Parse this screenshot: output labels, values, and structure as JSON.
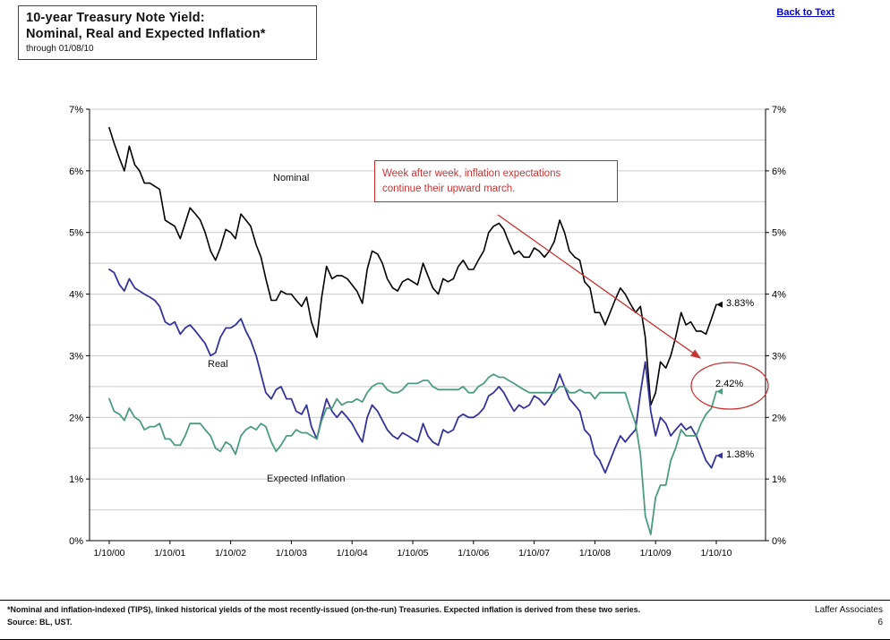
{
  "header": {
    "title_line1": "10-year Treasury Note Yield:",
    "title_line2": "Nominal, Real and Expected Inflation*",
    "subtitle": "through 01/08/10",
    "back_link": "Back to Text"
  },
  "annotation": {
    "line1": "Week after week, inflation expectations",
    "line2": "continue their upward march.",
    "color": "#c63333"
  },
  "footer": {
    "note": "*Nominal and inflation-indexed (TIPS), linked historical yields of the most recently-issued (on-the-run) Treasuries. Expected inflation is derived from these two series.",
    "source": "Source: BL, UST.",
    "company": "Laffer Associates",
    "page_number": "6"
  },
  "chart_data": {
    "type": "line",
    "title": "10-year Treasury Note Yield: Nominal, Real and Expected Inflation",
    "xlabel": "",
    "ylabel": "",
    "xlim": [
      2000.03,
      2010.03
    ],
    "ylim": [
      0,
      7
    ],
    "grid": {
      "horizontal": true,
      "step_percent": 0.5
    },
    "legend_position": "inline-labels",
    "x_tick_labels": [
      "1/10/00",
      "1/10/01",
      "1/10/02",
      "1/10/03",
      "1/10/04",
      "1/10/05",
      "1/10/06",
      "1/10/07",
      "1/10/08",
      "1/10/09",
      "1/10/10"
    ],
    "y_tick_labels": [
      "0%",
      "1%",
      "2%",
      "3%",
      "4%",
      "5%",
      "6%",
      "7%"
    ],
    "x": [
      2000.03,
      2000.11,
      2000.2,
      2000.28,
      2000.36,
      2000.45,
      2000.53,
      2000.61,
      2000.7,
      2000.78,
      2000.86,
      2000.95,
      2001.03,
      2001.11,
      2001.2,
      2001.28,
      2001.36,
      2001.45,
      2001.53,
      2001.61,
      2001.7,
      2001.78,
      2001.86,
      2001.95,
      2002.03,
      2002.11,
      2002.2,
      2002.28,
      2002.36,
      2002.45,
      2002.53,
      2002.61,
      2002.7,
      2002.78,
      2002.86,
      2002.95,
      2003.03,
      2003.11,
      2003.2,
      2003.28,
      2003.36,
      2003.45,
      2003.53,
      2003.61,
      2003.7,
      2003.78,
      2003.86,
      2003.95,
      2004.03,
      2004.11,
      2004.2,
      2004.28,
      2004.36,
      2004.45,
      2004.53,
      2004.61,
      2004.7,
      2004.78,
      2004.86,
      2004.95,
      2005.03,
      2005.11,
      2005.2,
      2005.28,
      2005.36,
      2005.45,
      2005.53,
      2005.61,
      2005.7,
      2005.78,
      2005.86,
      2005.95,
      2006.03,
      2006.11,
      2006.2,
      2006.28,
      2006.36,
      2006.45,
      2006.53,
      2006.61,
      2006.7,
      2006.78,
      2006.86,
      2006.95,
      2007.03,
      2007.11,
      2007.2,
      2007.28,
      2007.36,
      2007.45,
      2007.53,
      2007.61,
      2007.7,
      2007.78,
      2007.86,
      2007.95,
      2008.03,
      2008.11,
      2008.2,
      2008.28,
      2008.36,
      2008.45,
      2008.53,
      2008.61,
      2008.7,
      2008.78,
      2008.86,
      2008.95,
      2009.03,
      2009.11,
      2009.2,
      2009.28,
      2009.36,
      2009.45,
      2009.53,
      2009.61,
      2009.7,
      2009.78,
      2009.86,
      2009.95,
      2010.03
    ],
    "series": [
      {
        "id": "nominal",
        "name": "Nominal",
        "color": "#000000",
        "width": 1.6,
        "end_label": "3.83%",
        "end_value": 3.83,
        "values": [
          6.7,
          6.45,
          6.2,
          6.0,
          6.4,
          6.1,
          6.0,
          5.8,
          5.8,
          5.75,
          5.7,
          5.2,
          5.15,
          5.1,
          4.9,
          5.15,
          5.4,
          5.3,
          5.2,
          5.0,
          4.7,
          4.55,
          4.75,
          5.05,
          5.0,
          4.9,
          5.3,
          5.2,
          5.1,
          4.8,
          4.6,
          4.25,
          3.9,
          3.9,
          4.05,
          4.0,
          4.0,
          3.9,
          3.8,
          3.95,
          3.55,
          3.3,
          3.95,
          4.45,
          4.25,
          4.3,
          4.3,
          4.25,
          4.15,
          4.05,
          3.85,
          4.4,
          4.7,
          4.65,
          4.5,
          4.25,
          4.1,
          4.05,
          4.2,
          4.25,
          4.2,
          4.15,
          4.5,
          4.3,
          4.1,
          4.0,
          4.25,
          4.2,
          4.25,
          4.45,
          4.55,
          4.4,
          4.4,
          4.55,
          4.7,
          5.0,
          5.1,
          5.15,
          5.05,
          4.85,
          4.65,
          4.7,
          4.6,
          4.6,
          4.75,
          4.7,
          4.6,
          4.7,
          4.85,
          5.2,
          5.0,
          4.7,
          4.6,
          4.55,
          4.2,
          4.1,
          3.7,
          3.7,
          3.5,
          3.7,
          3.9,
          4.1,
          4.0,
          3.85,
          3.7,
          3.8,
          3.3,
          2.2,
          2.4,
          2.9,
          2.8,
          3.0,
          3.3,
          3.7,
          3.5,
          3.55,
          3.4,
          3.4,
          3.35,
          3.6,
          3.83
        ]
      },
      {
        "id": "real",
        "name": "Real",
        "color": "#333399",
        "width": 1.8,
        "end_label": "1.38%",
        "end_value": 1.38,
        "values": [
          4.4,
          4.35,
          4.15,
          4.05,
          4.25,
          4.1,
          4.05,
          4.0,
          3.95,
          3.9,
          3.8,
          3.55,
          3.5,
          3.55,
          3.35,
          3.45,
          3.5,
          3.4,
          3.3,
          3.2,
          3.0,
          3.05,
          3.3,
          3.45,
          3.45,
          3.5,
          3.6,
          3.4,
          3.25,
          3.0,
          2.7,
          2.4,
          2.3,
          2.45,
          2.5,
          2.3,
          2.3,
          2.1,
          2.05,
          2.2,
          1.85,
          1.65,
          2.0,
          2.3,
          2.1,
          2.0,
          2.1,
          2.0,
          1.9,
          1.75,
          1.6,
          2.0,
          2.2,
          2.1,
          1.95,
          1.8,
          1.7,
          1.65,
          1.75,
          1.7,
          1.65,
          1.6,
          1.9,
          1.7,
          1.6,
          1.55,
          1.8,
          1.75,
          1.8,
          2.0,
          2.05,
          2.0,
          2.0,
          2.05,
          2.15,
          2.35,
          2.4,
          2.5,
          2.4,
          2.25,
          2.1,
          2.2,
          2.15,
          2.2,
          2.35,
          2.3,
          2.2,
          2.3,
          2.45,
          2.7,
          2.5,
          2.3,
          2.2,
          2.1,
          1.8,
          1.7,
          1.4,
          1.3,
          1.1,
          1.3,
          1.5,
          1.7,
          1.6,
          1.7,
          1.8,
          2.4,
          2.9,
          2.1,
          1.7,
          2.0,
          1.9,
          1.7,
          1.8,
          1.9,
          1.8,
          1.85,
          1.7,
          1.5,
          1.3,
          1.18,
          1.38
        ]
      },
      {
        "id": "expected-inflation",
        "name": "Expected Inflation",
        "color": "#4b9c7e",
        "width": 1.8,
        "end_label": "2.42%",
        "end_value": 2.42,
        "values": [
          2.3,
          2.1,
          2.05,
          1.95,
          2.15,
          2.0,
          1.95,
          1.8,
          1.85,
          1.85,
          1.9,
          1.65,
          1.65,
          1.55,
          1.55,
          1.7,
          1.9,
          1.9,
          1.9,
          1.8,
          1.7,
          1.5,
          1.45,
          1.6,
          1.55,
          1.4,
          1.7,
          1.8,
          1.85,
          1.8,
          1.9,
          1.85,
          1.6,
          1.45,
          1.55,
          1.7,
          1.7,
          1.8,
          1.75,
          1.75,
          1.7,
          1.65,
          1.95,
          2.15,
          2.15,
          2.3,
          2.2,
          2.25,
          2.25,
          2.3,
          2.25,
          2.4,
          2.5,
          2.55,
          2.55,
          2.45,
          2.4,
          2.4,
          2.45,
          2.55,
          2.55,
          2.55,
          2.6,
          2.6,
          2.5,
          2.45,
          2.45,
          2.45,
          2.45,
          2.45,
          2.5,
          2.4,
          2.4,
          2.5,
          2.55,
          2.65,
          2.7,
          2.65,
          2.65,
          2.6,
          2.55,
          2.5,
          2.45,
          2.4,
          2.4,
          2.4,
          2.4,
          2.4,
          2.4,
          2.5,
          2.5,
          2.4,
          2.4,
          2.45,
          2.4,
          2.4,
          2.3,
          2.4,
          2.4,
          2.4,
          2.4,
          2.4,
          2.4,
          2.15,
          1.9,
          1.4,
          0.4,
          0.1,
          0.7,
          0.9,
          0.9,
          1.3,
          1.5,
          1.8,
          1.7,
          1.7,
          1.7,
          1.9,
          2.05,
          2.15,
          2.42
        ]
      }
    ]
  }
}
